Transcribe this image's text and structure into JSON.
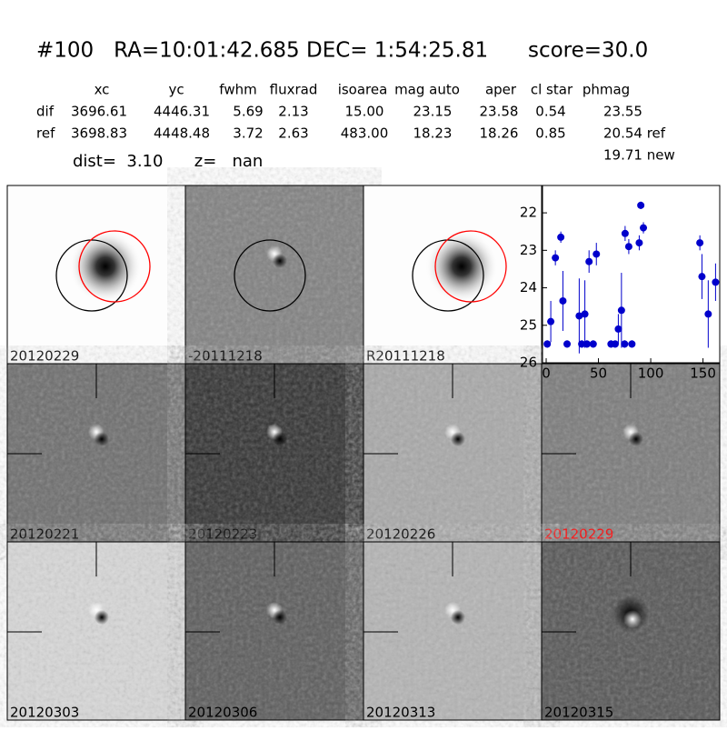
{
  "header": {
    "title": "#100   RA=10:01:42.685 DEC= 1:54:25.81      score=30.0",
    "dist": "dist=  3.10      z=   nan"
  },
  "table": {
    "columns": [
      "xc",
      "yc",
      "fwhm",
      "fluxrad",
      "isoarea",
      "mag auto",
      "aper",
      "cl star",
      "phmag"
    ],
    "rows": [
      [
        "dif",
        "3696.61",
        "4446.31",
        "5.69",
        "2.13",
        "15.00",
        "23.15",
        "23.58",
        "0.54",
        "23.55"
      ],
      [
        "ref",
        "3698.83",
        "4448.48",
        "3.72",
        "2.63",
        "483.00",
        "18.23",
        "18.26",
        "0.85",
        "20.54 ref"
      ]
    ],
    "extra": "19.71 new"
  },
  "panels": [
    {
      "label": "20120229"
    },
    {
      "label": "-20111218"
    },
    {
      "label": "R20111218"
    },
    {
      "label": "20120221"
    },
    {
      "label": "20120223"
    },
    {
      "label": "20120226"
    },
    {
      "label": "20120229",
      "color": "#ff0000"
    },
    {
      "label": "20120303"
    },
    {
      "label": "20120306"
    },
    {
      "label": "20120313"
    },
    {
      "label": "20120315"
    }
  ],
  "chart_data": {
    "type": "scatter",
    "color": "#0000cc",
    "xlim": [
      -3.5,
      166
    ],
    "ylim": [
      26,
      21.27
    ],
    "xticks": [
      0,
      50,
      100,
      150
    ],
    "yticks": [
      22,
      23,
      24,
      25,
      26
    ],
    "x": [
      1,
      4.4,
      8.8,
      14,
      16,
      20,
      31.6,
      34,
      37,
      39,
      41,
      45,
      48,
      62,
      66,
      69,
      72,
      75,
      75.5,
      79,
      82,
      89,
      90.5,
      93,
      147,
      149,
      155,
      162
    ],
    "values": [
      25.5,
      24.9,
      23.2,
      22.65,
      24.35,
      25.5,
      24.75,
      25.5,
      24.7,
      25.5,
      23.3,
      25.5,
      23.1,
      25.5,
      25.5,
      25.1,
      24.6,
      25.5,
      22.55,
      22.9,
      25.5,
      22.8,
      21.8,
      22.4,
      22.8,
      23.7,
      24.7,
      23.85
    ],
    "errors": [
      0.1,
      0.55,
      0.2,
      0.15,
      0.8,
      0.1,
      1,
      0.1,
      0.9,
      0.1,
      0.3,
      0.1,
      0.3,
      0.1,
      0.1,
      0.4,
      1,
      0.1,
      0.2,
      0.2,
      0.1,
      0.2,
      0.1,
      0.15,
      0.2,
      0.6,
      0.9,
      0.5
    ]
  }
}
